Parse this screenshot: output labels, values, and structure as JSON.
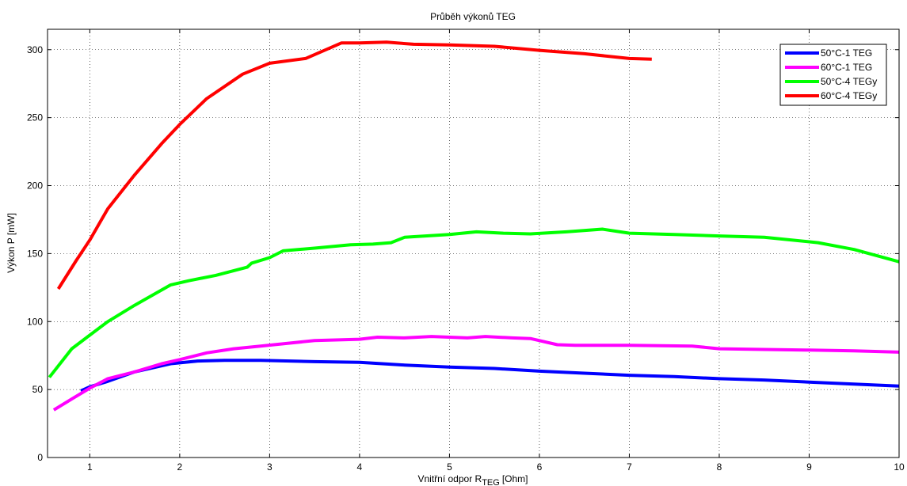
{
  "chart_data": {
    "type": "line",
    "title": "Průběh výkonů TEG",
    "xlabel": {
      "main": "Vnitřní odpor R",
      "sub": "TEG",
      "unit": "[Ohm]"
    },
    "ylabel": "Výkon P [mW]",
    "xlim": [
      0.53,
      10
    ],
    "ylim": [
      0,
      315
    ],
    "xticks": [
      1,
      2,
      3,
      4,
      5,
      6,
      7,
      8,
      9,
      10
    ],
    "yticks": [
      0,
      50,
      100,
      150,
      200,
      250,
      300
    ],
    "grid": true,
    "legend_position": "top-right",
    "series": [
      {
        "name": "50°C-1 TEG",
        "color": "#0000ff",
        "x": [
          0.9,
          1.0,
          1.2,
          1.5,
          1.9,
          2.2,
          2.5,
          2.9,
          3.5,
          4.0,
          4.5,
          5.0,
          5.5,
          6.0,
          6.5,
          7.0,
          7.5,
          8.0,
          8.5,
          9.0,
          9.5,
          10.0
        ],
        "y": [
          49,
          52,
          56,
          63,
          69,
          71,
          71.5,
          71.5,
          70.5,
          70,
          68,
          66.5,
          65.5,
          63.5,
          62,
          60.5,
          59.5,
          58,
          57,
          55.5,
          54,
          52.5
        ]
      },
      {
        "name": "60°C-1 TEG",
        "color": "#ff00ff",
        "x": [
          0.6,
          0.8,
          1.0,
          1.2,
          1.5,
          1.8,
          2.0,
          2.3,
          2.6,
          2.9,
          3.2,
          3.5,
          4.0,
          4.2,
          4.5,
          4.8,
          5.2,
          5.4,
          5.7,
          5.9,
          6.2,
          6.4,
          7.0,
          7.7,
          8.0,
          8.5,
          9.0,
          9.5,
          10.0
        ],
        "y": [
          35,
          43,
          51,
          58,
          63,
          69,
          72,
          77,
          80,
          82,
          84,
          86,
          87,
          88.5,
          88,
          89,
          88,
          89,
          88,
          87.5,
          83,
          82.5,
          82.5,
          82,
          80,
          79.5,
          79,
          78.5,
          77.5
        ]
      },
      {
        "name": "50°C-4 TEGy",
        "color": "#00ff00",
        "x": [
          0.55,
          0.8,
          1.0,
          1.2,
          1.5,
          1.9,
          2.1,
          2.4,
          2.75,
          2.8,
          3.0,
          3.15,
          3.5,
          3.9,
          4.15,
          4.35,
          4.5,
          5.0,
          5.3,
          5.6,
          5.9,
          6.3,
          6.7,
          7.0,
          7.5,
          8.0,
          8.5,
          9.1,
          9.5,
          10.0
        ],
        "y": [
          59,
          80,
          90,
          100,
          112,
          127,
          130,
          134,
          140,
          143,
          147,
          152,
          154,
          156.5,
          157,
          158,
          162,
          164,
          166,
          165,
          164.5,
          166,
          168,
          165,
          164,
          163,
          162,
          158,
          153,
          144
        ]
      },
      {
        "name": "60°C-4 TEGy",
        "color": "#ff0000",
        "x": [
          0.65,
          0.85,
          1.0,
          1.2,
          1.5,
          1.8,
          2.0,
          2.3,
          2.7,
          3.0,
          3.4,
          3.8,
          4.0,
          4.3,
          4.6,
          5.0,
          5.5,
          6.0,
          6.5,
          7.0,
          7.25
        ],
        "y": [
          124,
          145,
          160,
          183,
          208,
          231,
          245,
          264,
          282,
          290,
          293.5,
          305,
          305,
          305.5,
          304,
          303.5,
          302.5,
          299.5,
          297,
          293.5,
          293
        ]
      }
    ]
  }
}
